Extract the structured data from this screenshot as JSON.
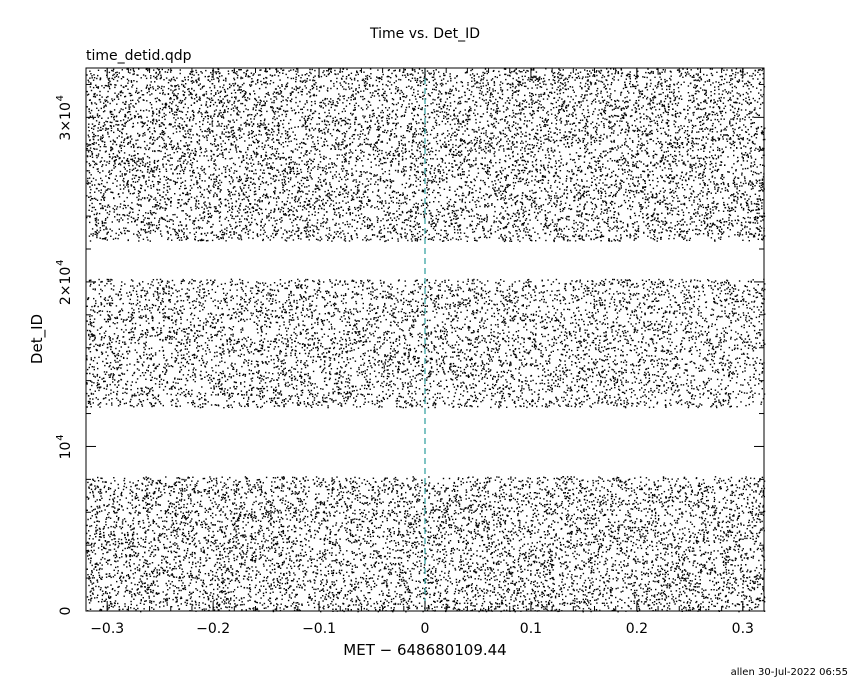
{
  "chart_data": {
    "type": "scatter",
    "title": "Time vs. Det_ID",
    "subtitle": "time_detid.qdp",
    "xlabel": "MET − 648680109.44",
    "ylabel": "Det_ID",
    "xlim": [
      -0.32,
      0.32
    ],
    "ylim": [
      0,
      33000
    ],
    "x_ticks": [
      {
        "value": -0.3,
        "label": "−0.3"
      },
      {
        "value": -0.2,
        "label": "−0.2"
      },
      {
        "value": -0.1,
        "label": "−0.1"
      },
      {
        "value": 0,
        "label": "0"
      },
      {
        "value": 0.1,
        "label": "0.1"
      },
      {
        "value": 0.2,
        "label": "0.2"
      },
      {
        "value": 0.3,
        "label": "0.3"
      }
    ],
    "y_ticks": [
      {
        "value": 0,
        "label": "0",
        "exp": ""
      },
      {
        "value": 10000,
        "label": "10",
        "exp": "4"
      },
      {
        "value": 20000,
        "label": "2×10",
        "exp": "4"
      },
      {
        "value": 30000,
        "label": "3×10",
        "exp": "4"
      }
    ],
    "reference_line": {
      "x": 0,
      "color": "#2a9d9d",
      "style": "dashed"
    },
    "point_color": "#000000",
    "grid": false,
    "detector_bands": [
      {
        "y_range": [
          0,
          8200
        ],
        "density": 8.5
      },
      {
        "y_range": [
          12400,
          20200
        ],
        "density": 7.5
      },
      {
        "y_range": [
          22500,
          33000
        ],
        "density": 8.5
      }
    ],
    "footer": "allen 30-Jul-2022 06:55"
  }
}
